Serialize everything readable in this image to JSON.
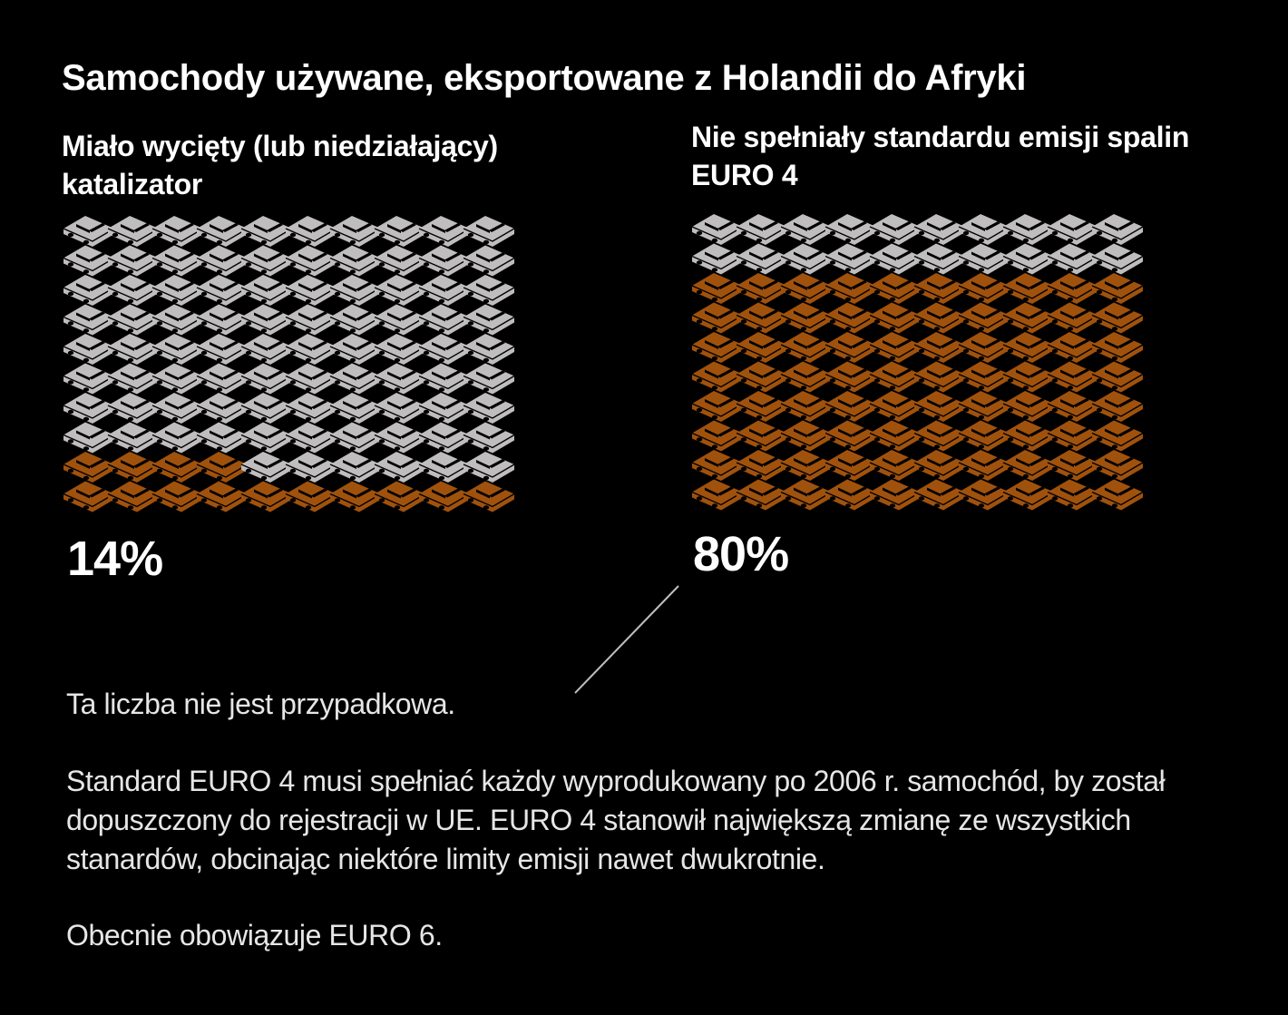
{
  "title": "Samochody używane, eksportowane z Holandii do Afryki",
  "colors": {
    "background": "#000000",
    "car_default": "#bfbdbd",
    "car_highlight": "#a0520d",
    "car_outline": "#000000",
    "text": "#ffffff",
    "body_text": "#e6e6e6",
    "connector": "#bfbfbf"
  },
  "icon": "car-icon",
  "chart_data": [
    {
      "type": "waffle",
      "title": "Miało wycięty (lub niedziałający) katalizator",
      "label": "14%",
      "total": 100,
      "highlighted": 14,
      "rows": 10,
      "columns": 10,
      "fill_from": "bottom",
      "series": [
        {
          "name": "",
          "value": 14,
          "color": "#a0520d"
        },
        {
          "name": "",
          "value": 86,
          "color": "#bfbdbd"
        }
      ]
    },
    {
      "type": "waffle",
      "title": "Nie spełniały standardu emisji spalin EURO 4",
      "label": "80%",
      "total": 100,
      "highlighted": 80,
      "rows": 10,
      "columns": 10,
      "fill_from": "bottom",
      "series": [
        {
          "name": "",
          "value": 80,
          "color": "#a0520d"
        },
        {
          "name": "",
          "value": 20,
          "color": "#bfbdbd"
        }
      ]
    }
  ],
  "notes": [
    "Ta liczba nie jest przypadkowa.",
    "Standard EURO 4 musi spełniać każdy wyprodukowany po 2006 r. samochód, by został dopuszczony do rejestracji w UE. EURO 4 stanowił największą zmianę ze wszystkich stanardów, obcinając niektóre limity emisji nawet dwukrotnie.",
    "Obecnie obowiązuje EURO 6."
  ]
}
